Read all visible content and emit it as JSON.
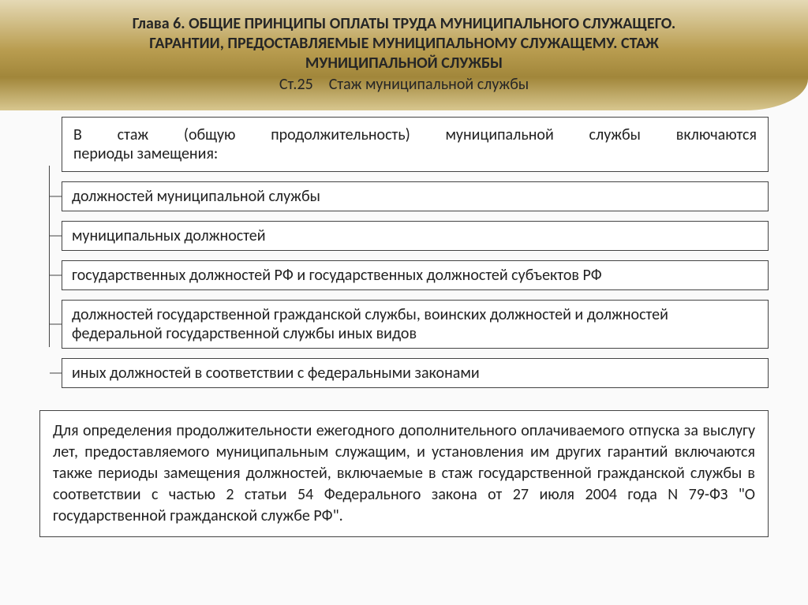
{
  "banner": {
    "title_line1": "Глава 6. ОБЩИЕ ПРИНЦИПЫ ОПЛАТЫ ТРУДА МУНИЦИПАЛЬНОГО СЛУЖАЩЕГО.",
    "title_line2": "ГАРАНТИИ, ПРЕДОСТАВЛЯЕМЫЕ МУНИЦИПАЛЬНОМУ СЛУЖАЩЕМУ. СТАЖ",
    "title_line3": "МУНИЦИПАЛЬНОЙ СЛУЖБЫ",
    "article": "Ст.25 Стаж муниципальной службы"
  },
  "intro": "В стаж (общую продолжительность) муниципальной службы включаются периоды замещения:",
  "items": [
    "должностей муниципальной службы",
    "муниципальных должностей",
    "государственных должностей РФ и государственных должностей субъектов РФ",
    "должностей государственной гражданской службы, воинских должностей и должностей федеральной государственной службы иных видов",
    "иных должностей в соответствии с федеральными законами"
  ],
  "bottom": "Для определения продолжительности ежегодного дополнительного оплачиваемого отпуска за выслугу лет, предоставляемого муниципальным служащим, и установления им других гарантий включаются также периоды замещения должностей, включаемые в стаж государственной гражданской службы в соответствии с частью 2 статьи 54 Федерального закона от 27 июля 2004 года N 79-ФЗ \"О государственной гражданской службе РФ\".",
  "style": {
    "banner_gradient": [
      "#e5d9b5",
      "#b99d50",
      "#a1863a",
      "#d8c78f"
    ],
    "box_border": "#444444",
    "box_bg": "#ffffff",
    "page_bg": "#fafafa",
    "title_fontsize": 20,
    "body_fontsize": 20,
    "font_family": "Calibri"
  }
}
